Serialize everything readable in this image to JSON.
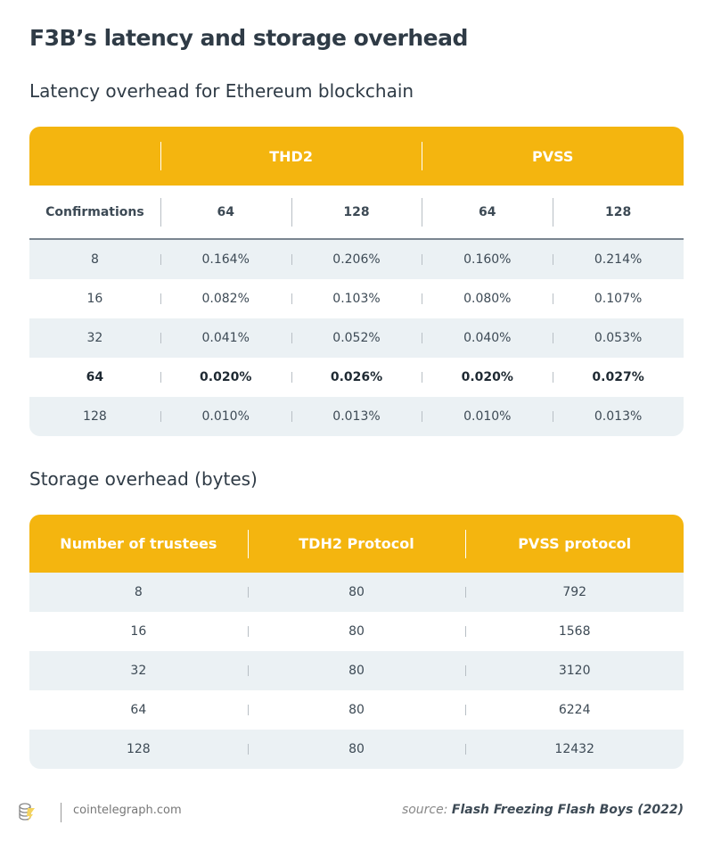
{
  "title": "F3B’s latency and storage overhead",
  "latency": {
    "subtitle": "Latency overhead for Ethereum blockchain",
    "group_headers": [
      "",
      "THD2",
      "PVSS"
    ],
    "sub_headers": [
      "Confirmations",
      "64",
      "128",
      "64",
      "128"
    ],
    "rows": [
      [
        "8",
        "0.164%",
        "0.206%",
        "0.160%",
        "0.214%"
      ],
      [
        "16",
        "0.082%",
        "0.103%",
        "0.080%",
        "0.107%"
      ],
      [
        "32",
        "0.041%",
        "0.052%",
        "0.040%",
        "0.053%"
      ],
      [
        "64",
        "0.020%",
        "0.026%",
        "0.020%",
        "0.027%"
      ],
      [
        "128",
        "0.010%",
        "0.013%",
        "0.010%",
        "0.013%"
      ]
    ],
    "highlighted_row": 3
  },
  "storage": {
    "subtitle": "Storage overhead (bytes)",
    "headers": [
      "Number of trustees",
      "TDH2 Protocol",
      "PVSS protocol"
    ],
    "rows": [
      [
        "8",
        "80",
        "792"
      ],
      [
        "16",
        "80",
        "1568"
      ],
      [
        "32",
        "80",
        "3120"
      ],
      [
        "64",
        "80",
        "6224"
      ],
      [
        "128",
        "80",
        "12432"
      ]
    ]
  },
  "footer": {
    "site": "cointelegraph.com",
    "source_prefix": "source:",
    "source_title": "Flash Freezing Flash Boys (2022)",
    "logo_icon": "cointelegraph-logo-icon"
  },
  "colors": {
    "accent": "#f4b50f",
    "row_alt": "#ebf1f4",
    "text": "#3d4a55"
  }
}
